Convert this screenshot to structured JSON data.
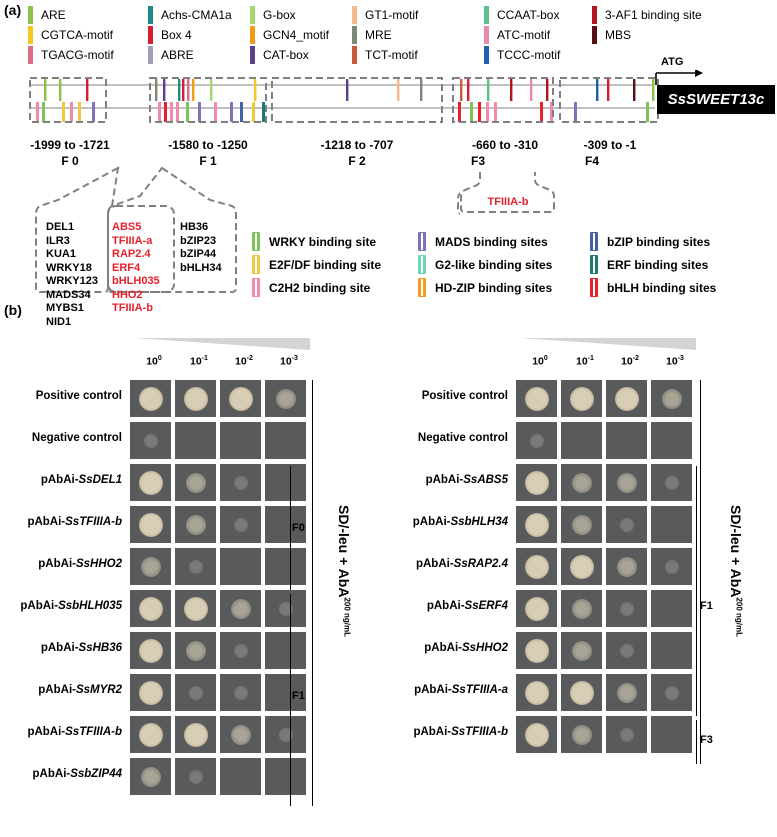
{
  "panel_a": {
    "label": "(a)",
    "motifs": [
      {
        "name": "ARE",
        "color": "#8bc34a"
      },
      {
        "name": "Achs-CMA1a",
        "color": "#1f8a8a"
      },
      {
        "name": "G-box",
        "color": "#a5d66b"
      },
      {
        "name": "GT1-motif",
        "color": "#f5b98a"
      },
      {
        "name": "CCAAT-box",
        "color": "#5cc08b"
      },
      {
        "name": "3-AF1 binding site",
        "color": "#b3141b"
      },
      {
        "name": "CGTCA-motif",
        "color": "#f4c81f"
      },
      {
        "name": "Box 4",
        "color": "#d81b33"
      },
      {
        "name": "GCN4_motif",
        "color": "#f39a16"
      },
      {
        "name": "MRE",
        "color": "#7a8a74"
      },
      {
        "name": "ATC-motif",
        "color": "#eb8aa8"
      },
      {
        "name": "MBS",
        "color": "#5a0f14"
      },
      {
        "name": "TGACG-motif",
        "color": "#e06a86"
      },
      {
        "name": "ABRE",
        "color": "#9e9eb8"
      },
      {
        "name": "CAT-box",
        "color": "#5e3f8c"
      },
      {
        "name": "TCT-motif",
        "color": "#c95a3a"
      },
      {
        "name": "TCCC-motif",
        "color": "#1f5fb0"
      }
    ],
    "start_codon": "ATG",
    "gene": "SsSWEET13c",
    "fragments": [
      {
        "range": "-1999 to -1721",
        "name": "F 0"
      },
      {
        "range": "-1580 to -1250",
        "name": "F 1"
      },
      {
        "range": "-1218 to -707",
        "name": "F 2"
      },
      {
        "range": "-660 to -310",
        "name": "F3"
      },
      {
        "range": "-309 to -1",
        "name": "F4"
      }
    ],
    "f1_tf_col1": [
      "DEL1",
      "ILR3",
      "KUA1",
      "WRKY18",
      "WRKY123",
      "MADS34",
      "MYBS1",
      "NID1"
    ],
    "f1_tf_col2": [
      "ABS5",
      "TFIIIA-a",
      "RAP2.4",
      "ERF4",
      "bHLH035",
      "HHO2",
      "TFIIIA-b"
    ],
    "f1_tf_col3": [
      "HB36",
      "bZIP23",
      "bZIP44",
      "bHLH34"
    ],
    "f3_tf": "TFIIIA-b",
    "families": [
      {
        "name": "WRKY binding site",
        "color": "#7cc35a"
      },
      {
        "name": "MADS binding sites",
        "color": "#7a74b8"
      },
      {
        "name": "bZIP binding sites",
        "color": "#4a5ea8"
      },
      {
        "name": "E2F/DF binding site",
        "color": "#f2c744"
      },
      {
        "name": "G2-like binding sites",
        "color": "#6fd6b8"
      },
      {
        "name": "ERF binding sites",
        "color": "#1f7a6e"
      },
      {
        "name": "C2H2 binding site",
        "color": "#f08aa8"
      },
      {
        "name": "HD-ZIP binding sites",
        "color": "#f59a26"
      },
      {
        "name": "bHLH binding sites",
        "color": "#e8202a"
      }
    ]
  },
  "panel_b": {
    "label": "(b)",
    "dilutions": [
      {
        "base": "10",
        "exp": "0"
      },
      {
        "base": "10",
        "exp": "-1"
      },
      {
        "base": "10",
        "exp": "-2"
      },
      {
        "base": "10",
        "exp": "-3"
      }
    ],
    "medium_label": "SD/-leu + AbA",
    "medium_conc": "200 ng/mL",
    "left": {
      "controls": [
        {
          "pre": "Positive control",
          "gene": ""
        },
        {
          "pre": "Negative control",
          "gene": ""
        }
      ],
      "rows": [
        {
          "pre": "pAbAi-",
          "gene": "SsDEL1"
        },
        {
          "pre": "pAbAi-",
          "gene": "SsTFIIIA-b"
        },
        {
          "pre": "pAbAi-",
          "gene": "SsHHO2"
        },
        {
          "pre": "pAbAi-",
          "gene": "SsbHLH035"
        },
        {
          "pre": "pAbAi-",
          "gene": "SsHB36"
        },
        {
          "pre": "pAbAi-",
          "gene": "SsMYR2"
        },
        {
          "pre": "pAbAi-",
          "gene": "SsTFIIIA-b"
        },
        {
          "pre": "pAbAi-",
          "gene": "SsbZIP44"
        }
      ],
      "groups": [
        "F0",
        "F1"
      ]
    },
    "right": {
      "controls": [
        {
          "pre": "Positive control",
          "gene": ""
        },
        {
          "pre": "Negative control",
          "gene": ""
        }
      ],
      "rows": [
        {
          "pre": "pAbAi-",
          "gene": "SsABS5"
        },
        {
          "pre": "pAbAi-",
          "gene": "SsbHLH34"
        },
        {
          "pre": "pAbAi-",
          "gene": "SsRAP2.4"
        },
        {
          "pre": "pAbAi-",
          "gene": "SsERF4"
        },
        {
          "pre": "pAbAi-",
          "gene": "SsHHO2"
        },
        {
          "pre": "pAbAi-",
          "gene": "SsTFIIIA-a"
        },
        {
          "pre": "pAbAi-",
          "gene": "SsTFIIIA-b"
        }
      ],
      "groups": [
        "F1",
        "F3"
      ]
    }
  }
}
